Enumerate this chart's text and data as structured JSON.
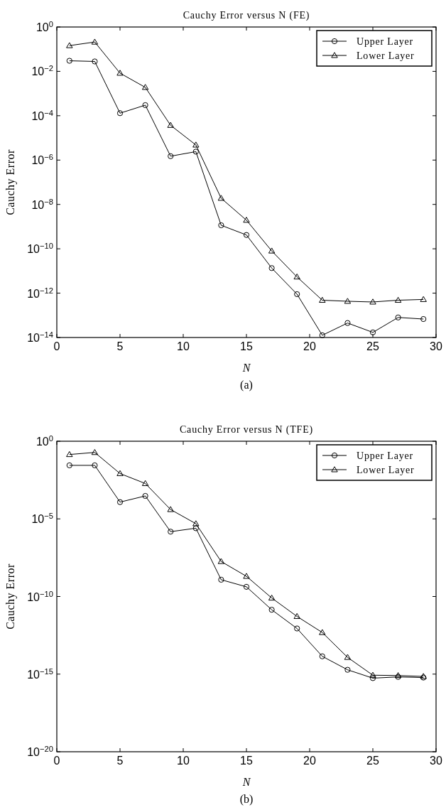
{
  "chart_data": [
    {
      "type": "line",
      "title": "Cauchy Error versus N (FE)",
      "xlabel": "N",
      "ylabel": "Cauchy Error",
      "annotations": [
        "(a)"
      ],
      "log": "y",
      "legend": "top right",
      "grid": false,
      "line_style": "solid",
      "x": [
        1,
        3,
        5,
        7,
        9,
        11,
        13,
        15,
        17,
        19,
        21,
        23,
        25,
        27,
        29
      ],
      "xlim": [
        0,
        30
      ],
      "xticks": [
        0,
        5,
        10,
        15,
        20,
        25,
        30
      ],
      "ylim": [
        1e-14,
        1
      ],
      "yticks": [
        {
          "value": 1,
          "label": "10$^{0}$"
        },
        {
          "value": 0.01,
          "label": "10$^{−2}$"
        },
        {
          "value": 0.0001,
          "label": "10$^{−4}$"
        },
        {
          "value": 1e-06,
          "label": "10$^{−6}$"
        },
        {
          "value": 1e-08,
          "label": "10$^{−8}$"
        },
        {
          "value": 1e-10,
          "label": "10$^{−10}$"
        },
        {
          "value": 1e-12,
          "label": "10$^{−12}$"
        },
        {
          "value": 1e-14,
          "label": "10$^{−14}$"
        }
      ],
      "series": [
        {
          "name": "Upper Layer",
          "color": "#000000",
          "marker": "circle",
          "values": [
            0.03,
            0.028,
            0.00013,
            0.0003,
            1.5e-06,
            2.4e-06,
            1.15e-09,
            4.2e-10,
            1.35e-11,
            9e-13,
            1.26e-14,
            4.5e-14,
            1.7e-14,
            8e-14,
            6.8e-14
          ]
        },
        {
          "name": "Lower Layer",
          "color": "#000000",
          "marker": "triangle",
          "values": [
            0.145,
            0.21,
            0.0083,
            0.0019,
            3.7e-05,
            4.8e-06,
            1.9e-08,
            1.95e-09,
            8e-11,
            5.4e-12,
            4.8e-13,
            4.3e-13,
            4e-13,
            4.8e-13,
            5.2e-13
          ]
        }
      ]
    },
    {
      "type": "line",
      "title": "Cauchy Error versus N (TFE)",
      "xlabel": "N",
      "ylabel": "Cauchy Error",
      "annotations": [
        "(b)"
      ],
      "log": "y",
      "legend": "top right",
      "grid": false,
      "line_style": "solid",
      "x": [
        1,
        3,
        5,
        7,
        9,
        11,
        13,
        15,
        17,
        19,
        21,
        23,
        25,
        27,
        29
      ],
      "xlim": [
        0,
        30
      ],
      "xticks": [
        0,
        5,
        10,
        15,
        20,
        25,
        30
      ],
      "ylim": [
        1e-20,
        1
      ],
      "yticks": [
        {
          "value": 1,
          "label": "10$^{0}$"
        },
        {
          "value": 1e-05,
          "label": "10$^{−5}$"
        },
        {
          "value": 1e-10,
          "label": "10$^{−10}$"
        },
        {
          "value": 1e-15,
          "label": "10$^{−15}$"
        },
        {
          "value": 1e-20,
          "label": "10$^{−20}$"
        }
      ],
      "series": [
        {
          "name": "Upper Layer",
          "color": "#000000",
          "marker": "circle",
          "values": [
            0.028,
            0.028,
            0.00012,
            0.0003,
            1.5e-06,
            2.5e-06,
            1.2e-09,
            4.2e-10,
            1.4e-11,
            8.7e-13,
            1.4e-14,
            1.9e-15,
            5.5e-16,
            6.6e-16,
            6e-16
          ]
        },
        {
          "name": "Lower Layer",
          "color": "#000000",
          "marker": "triangle",
          "values": [
            0.14,
            0.19,
            0.0083,
            0.0019,
            4e-05,
            4.9e-06,
            1.8e-08,
            2e-09,
            8e-11,
            5.2e-12,
            4.8e-13,
            1.2e-14,
            8.5e-16,
            8.1e-16,
            7.1e-16
          ]
        }
      ]
    }
  ]
}
